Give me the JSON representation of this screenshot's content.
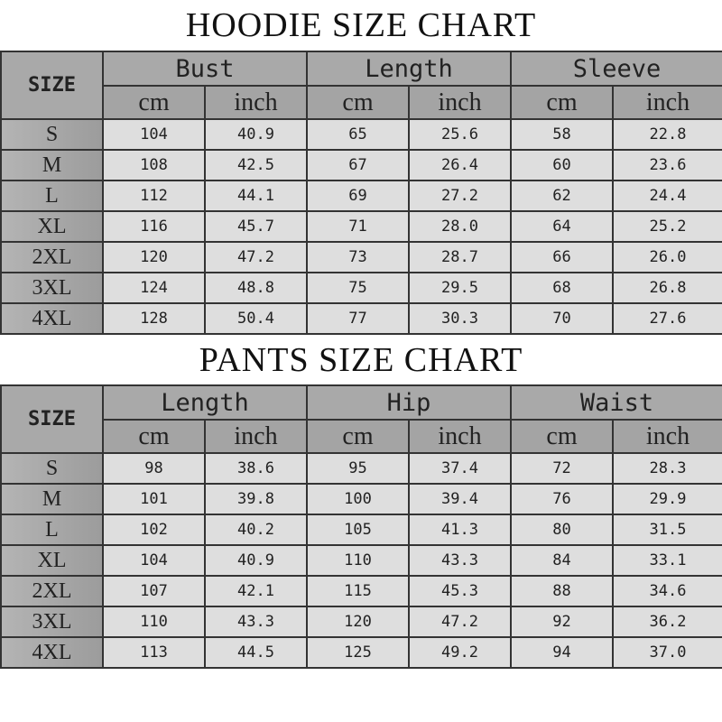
{
  "hoodie": {
    "title": "HOODIE SIZE CHART",
    "size_label": "SIZE",
    "groups": [
      "Bust",
      "Length",
      "Sleeve"
    ],
    "units": [
      "cm",
      "inch",
      "cm",
      "inch",
      "cm",
      "inch"
    ],
    "rows": [
      {
        "size": "S",
        "values": [
          "104",
          "40.9",
          "65",
          "25.6",
          "58",
          "22.8"
        ]
      },
      {
        "size": "M",
        "values": [
          "108",
          "42.5",
          "67",
          "26.4",
          "60",
          "23.6"
        ]
      },
      {
        "size": "L",
        "values": [
          "112",
          "44.1",
          "69",
          "27.2",
          "62",
          "24.4"
        ]
      },
      {
        "size": "XL",
        "values": [
          "116",
          "45.7",
          "71",
          "28.0",
          "64",
          "25.2"
        ]
      },
      {
        "size": "2XL",
        "values": [
          "120",
          "47.2",
          "73",
          "28.7",
          "66",
          "26.0"
        ]
      },
      {
        "size": "3XL",
        "values": [
          "124",
          "48.8",
          "75",
          "29.5",
          "68",
          "26.8"
        ]
      },
      {
        "size": "4XL",
        "values": [
          "128",
          "50.4",
          "77",
          "30.3",
          "70",
          "27.6"
        ]
      }
    ]
  },
  "pants": {
    "title": "PANTS SIZE CHART",
    "size_label": "SIZE",
    "groups": [
      "Length",
      "Hip",
      "Waist"
    ],
    "units": [
      "cm",
      "inch",
      "cm",
      "inch",
      "cm",
      "inch"
    ],
    "rows": [
      {
        "size": "S",
        "values": [
          "98",
          "38.6",
          "95",
          "37.4",
          "72",
          "28.3"
        ]
      },
      {
        "size": "M",
        "values": [
          "101",
          "39.8",
          "100",
          "39.4",
          "76",
          "29.9"
        ]
      },
      {
        "size": "L",
        "values": [
          "102",
          "40.2",
          "105",
          "41.3",
          "80",
          "31.5"
        ]
      },
      {
        "size": "XL",
        "values": [
          "104",
          "40.9",
          "110",
          "43.3",
          "84",
          "33.1"
        ]
      },
      {
        "size": "2XL",
        "values": [
          "107",
          "42.1",
          "115",
          "45.3",
          "88",
          "34.6"
        ]
      },
      {
        "size": "3XL",
        "values": [
          "110",
          "43.3",
          "120",
          "47.2",
          "92",
          "36.2"
        ]
      },
      {
        "size": "4XL",
        "values": [
          "113",
          "44.5",
          "125",
          "49.2",
          "94",
          "37.0"
        ]
      }
    ]
  }
}
